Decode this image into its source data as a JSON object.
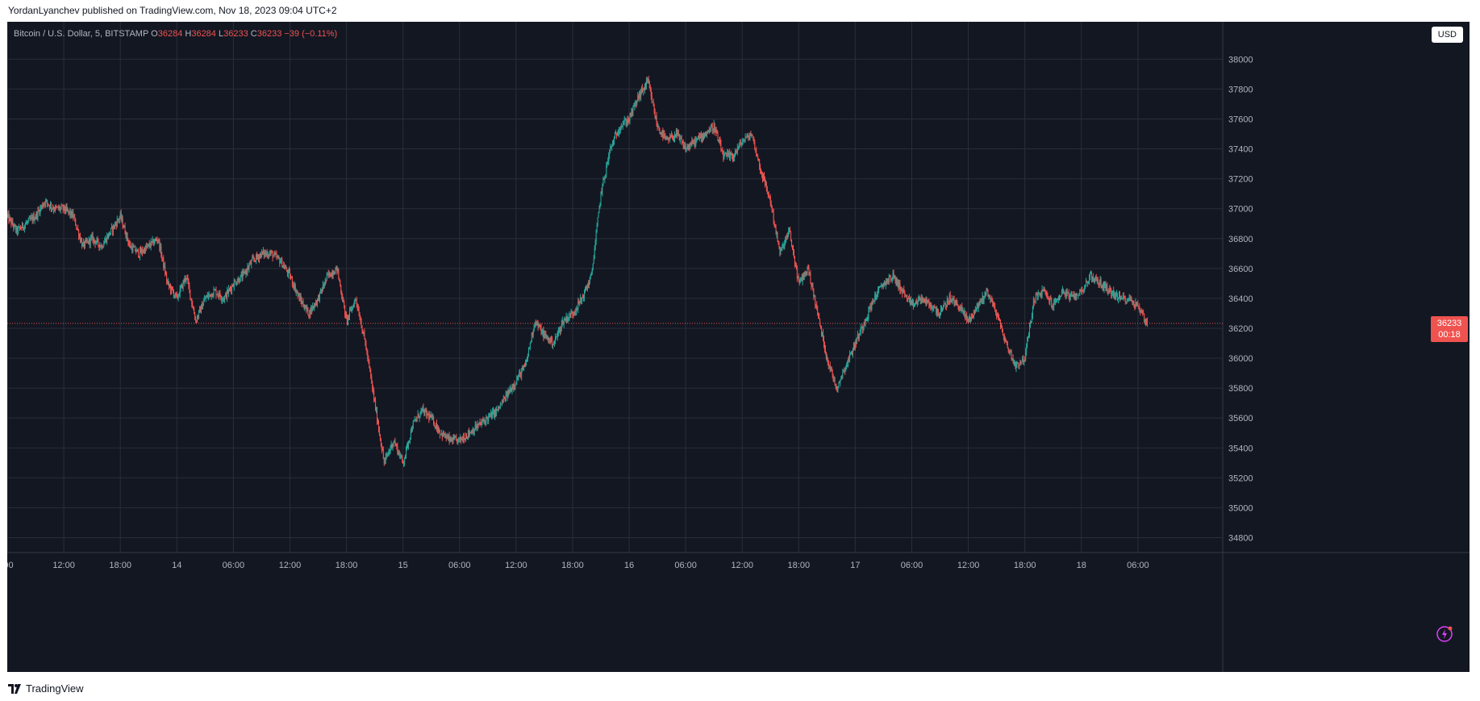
{
  "caption": "YordanLyanchev published on TradingView.com, Nov 18, 2023 09:04 UTC+2",
  "legend": {
    "symbol": "Bitcoin / U.S. Dollar, 5, BITSTAMP",
    "o_label": "O",
    "o": "36284",
    "h_label": "H",
    "h": "36284",
    "l_label": "L",
    "l": "36233",
    "c_label": "C",
    "c": "36233",
    "change": "−39 (−0.11%)"
  },
  "currency_button": "USD",
  "price_tag": {
    "price": "36233",
    "countdown": "00:18"
  },
  "footer": {
    "brand": "TradingView"
  },
  "colors": {
    "background": "#131722",
    "grid": "#2a2e39",
    "up": "#26a69a",
    "down": "#ef5350"
  },
  "chart_data": {
    "type": "candlestick",
    "title": "",
    "interval": "5",
    "exchange": "BITSTAMP",
    "ylim": [
      34700,
      38250
    ],
    "y_ticks": [
      34800,
      35000,
      35200,
      35400,
      35600,
      35800,
      36000,
      36200,
      36400,
      36600,
      36800,
      37000,
      37200,
      37400,
      37600,
      37800,
      38000
    ],
    "x_ticks": [
      ":00",
      "12:00",
      "18:00",
      "14",
      "06:00",
      "12:00",
      "18:00",
      "15",
      "06:00",
      "12:00",
      "18:00",
      "16",
      "06:00",
      "12:00",
      "18:00",
      "17",
      "06:00",
      "12:00",
      "18:00",
      "18",
      "06:00"
    ],
    "x_tick_hours": [
      6,
      12,
      18,
      24,
      30,
      36,
      42,
      48,
      54,
      60,
      66,
      72,
      78,
      84,
      90,
      96,
      102,
      108,
      114,
      120,
      126
    ],
    "x_range_hours": [
      6,
      135
    ],
    "grid": true,
    "last_price": 36233,
    "price_path": [
      [
        6.0,
        36950
      ],
      [
        7.0,
        36850
      ],
      [
        8.0,
        36900
      ],
      [
        9.0,
        36950
      ],
      [
        10.0,
        37050
      ],
      [
        11.0,
        37000
      ],
      [
        12.0,
        37000
      ],
      [
        13.0,
        36950
      ],
      [
        14.0,
        36750
      ],
      [
        15.0,
        36800
      ],
      [
        16.0,
        36750
      ],
      [
        17.0,
        36850
      ],
      [
        18.0,
        36950
      ],
      [
        19.0,
        36750
      ],
      [
        20.0,
        36700
      ],
      [
        21.0,
        36750
      ],
      [
        22.0,
        36800
      ],
      [
        23.0,
        36500
      ],
      [
        24.0,
        36400
      ],
      [
        25.0,
        36550
      ],
      [
        26.0,
        36250
      ],
      [
        27.0,
        36400
      ],
      [
        28.0,
        36450
      ],
      [
        29.0,
        36400
      ],
      [
        30.0,
        36500
      ],
      [
        31.0,
        36550
      ],
      [
        32.0,
        36650
      ],
      [
        33.0,
        36700
      ],
      [
        34.0,
        36700
      ],
      [
        35.0,
        36650
      ],
      [
        36.0,
        36550
      ],
      [
        37.0,
        36400
      ],
      [
        38.0,
        36300
      ],
      [
        39.0,
        36400
      ],
      [
        40.0,
        36550
      ],
      [
        41.0,
        36600
      ],
      [
        42.0,
        36250
      ],
      [
        43.0,
        36400
      ],
      [
        44.0,
        36100
      ],
      [
        45.0,
        35700
      ],
      [
        46.0,
        35300
      ],
      [
        47.0,
        35450
      ],
      [
        48.0,
        35300
      ],
      [
        49.0,
        35550
      ],
      [
        50.0,
        35650
      ],
      [
        51.0,
        35600
      ],
      [
        52.0,
        35500
      ],
      [
        53.0,
        35450
      ],
      [
        54.0,
        35450
      ],
      [
        55.0,
        35500
      ],
      [
        56.0,
        35550
      ],
      [
        57.0,
        35600
      ],
      [
        58.0,
        35650
      ],
      [
        59.0,
        35750
      ],
      [
        60.0,
        35850
      ],
      [
        61.0,
        35950
      ],
      [
        62.0,
        36250
      ],
      [
        63.0,
        36150
      ],
      [
        64.0,
        36100
      ],
      [
        65.0,
        36250
      ],
      [
        66.0,
        36300
      ],
      [
        67.0,
        36400
      ],
      [
        68.0,
        36550
      ],
      [
        69.0,
        37100
      ],
      [
        70.0,
        37400
      ],
      [
        71.0,
        37550
      ],
      [
        72.0,
        37600
      ],
      [
        73.0,
        37750
      ],
      [
        74.0,
        37850
      ],
      [
        75.0,
        37550
      ],
      [
        76.0,
        37450
      ],
      [
        77.0,
        37500
      ],
      [
        78.0,
        37400
      ],
      [
        79.0,
        37450
      ],
      [
        80.0,
        37500
      ],
      [
        81.0,
        37550
      ],
      [
        82.0,
        37350
      ],
      [
        83.0,
        37350
      ],
      [
        84.0,
        37450
      ],
      [
        85.0,
        37500
      ],
      [
        86.0,
        37250
      ],
      [
        87.0,
        37050
      ],
      [
        88.0,
        36700
      ],
      [
        89.0,
        36850
      ],
      [
        90.0,
        36500
      ],
      [
        91.0,
        36600
      ],
      [
        92.0,
        36300
      ],
      [
        93.0,
        36000
      ],
      [
        94.0,
        35800
      ],
      [
        95.0,
        35950
      ],
      [
        96.0,
        36100
      ],
      [
        97.0,
        36250
      ],
      [
        98.0,
        36400
      ],
      [
        99.0,
        36500
      ],
      [
        100.0,
        36550
      ],
      [
        101.0,
        36450
      ],
      [
        102.0,
        36350
      ],
      [
        103.0,
        36400
      ],
      [
        104.0,
        36350
      ],
      [
        105.0,
        36300
      ],
      [
        106.0,
        36400
      ],
      [
        107.0,
        36350
      ],
      [
        108.0,
        36250
      ],
      [
        109.0,
        36350
      ],
      [
        110.0,
        36450
      ],
      [
        111.0,
        36300
      ],
      [
        112.0,
        36100
      ],
      [
        113.0,
        35950
      ],
      [
        114.0,
        36000
      ],
      [
        115.0,
        36400
      ],
      [
        116.0,
        36450
      ],
      [
        117.0,
        36350
      ],
      [
        118.0,
        36450
      ],
      [
        119.0,
        36400
      ],
      [
        120.0,
        36450
      ],
      [
        121.0,
        36550
      ],
      [
        122.0,
        36500
      ],
      [
        123.0,
        36450
      ],
      [
        124.0,
        36400
      ],
      [
        125.0,
        36400
      ],
      [
        126.0,
        36350
      ],
      [
        127.0,
        36233
      ]
    ]
  }
}
